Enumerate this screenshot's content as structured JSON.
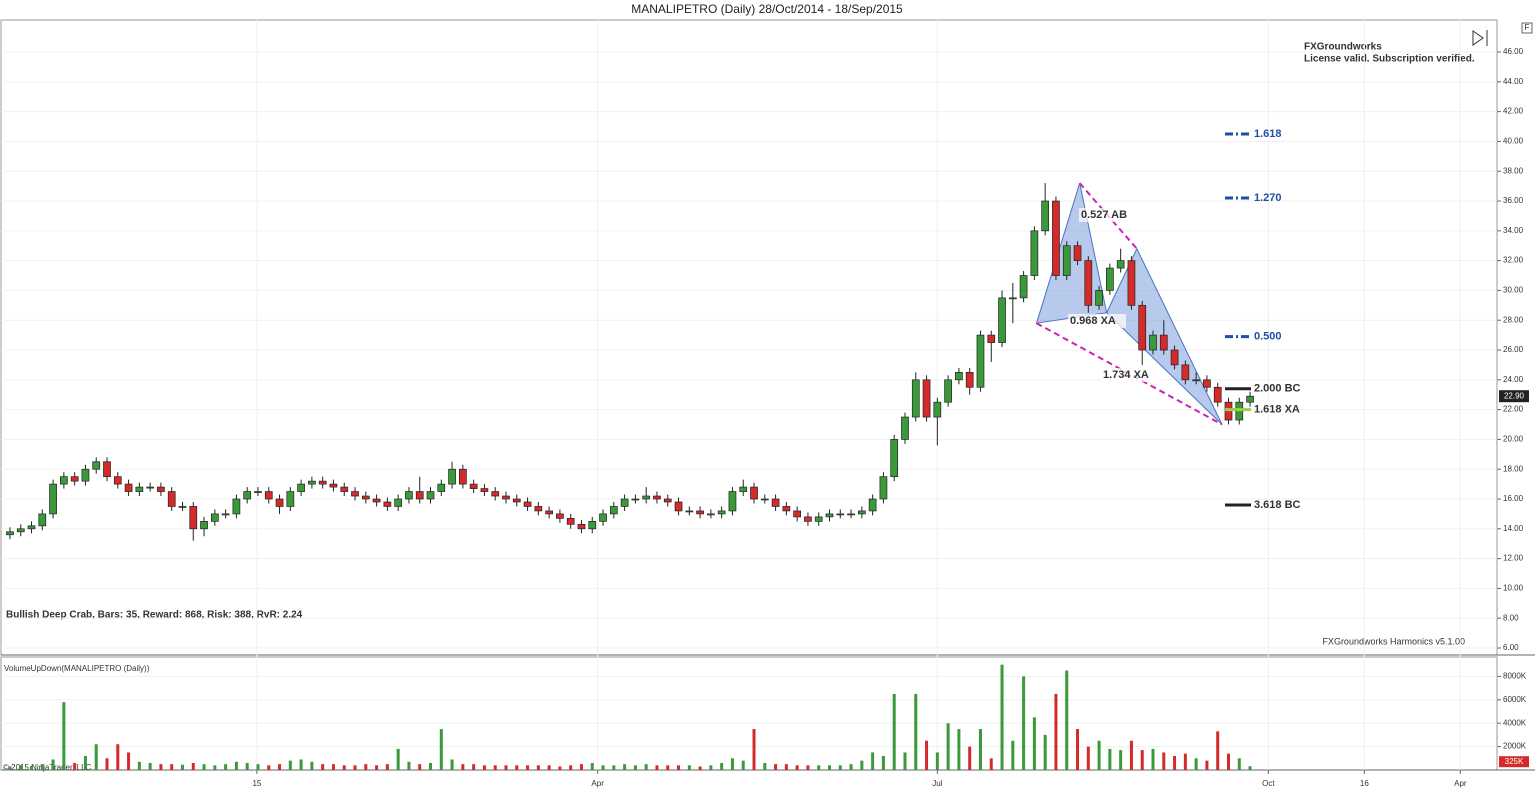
{
  "chart_data": {
    "type": "candlestick",
    "title": "MANALIPETRO (Daily)  28/Oct/2014 - 18/Sep/2015",
    "license_name": "FXGroundworks",
    "license_status": "License valid. Subscription verified.",
    "pattern_summary": "Bullish Deep Crab, Bars: 35, Reward: 868, Risk: 388, RvR: 2.24",
    "indicator_version": "FXGroundworks Harmonics v5.1.00",
    "volume_title": "VolumeUpDown(MANALIPETRO (Daily))",
    "copyright": "© 2015 NinjaTrader, LLC",
    "panel_button": "F",
    "up_color": "#3a9a3a",
    "down_color": "#d42a2a",
    "open": [
      13.6,
      13.8,
      14.0,
      14.2,
      15.0,
      17.0,
      17.5,
      17.2,
      18.0,
      18.5,
      17.5,
      17.0,
      16.5,
      16.8,
      16.8,
      16.5,
      15.5,
      15.5,
      14.0,
      14.5,
      15.0,
      15.0,
      16.0,
      16.5,
      16.5,
      16.0,
      15.5,
      16.5,
      17.0,
      17.2,
      17.0,
      16.8,
      16.5,
      16.2,
      16.0,
      15.8,
      15.5,
      16.0,
      16.5,
      16.0,
      16.5,
      17.0,
      18.0,
      17.0,
      16.7,
      16.5,
      16.2,
      16.0,
      15.8,
      15.5,
      15.2,
      15.0,
      14.7,
      14.3,
      14.0,
      14.5,
      15.0,
      15.5,
      16.0,
      16.0,
      16.2,
      16.0,
      15.8,
      15.2,
      15.2,
      15.0,
      15.0,
      15.2,
      16.5,
      16.8,
      16.0,
      16.0,
      15.5,
      15.2,
      14.8,
      14.5,
      14.8,
      15.0,
      15.0,
      15.0,
      15.2,
      16.0,
      17.5,
      20.0,
      21.5,
      24.0,
      21.5,
      22.5,
      24.0,
      24.5,
      23.5,
      27.0,
      26.5,
      29.5,
      29.5,
      31.0,
      34.0,
      36.0,
      31.0,
      33.0,
      32.0,
      29.0,
      30.0,
      31.5,
      32.0,
      29.0,
      26.0,
      27.0,
      26.0,
      25.0,
      24.0,
      24.0,
      23.5,
      22.5,
      21.3,
      22.5
    ],
    "high": [
      14.1,
      14.3,
      14.5,
      15.3,
      17.3,
      17.8,
      17.8,
      18.3,
      18.8,
      18.8,
      17.8,
      17.3,
      17.1,
      17.1,
      17.1,
      16.8,
      15.8,
      15.8,
      14.8,
      15.3,
      15.3,
      16.3,
      16.8,
      16.8,
      16.8,
      16.3,
      16.8,
      17.3,
      17.5,
      17.5,
      17.3,
      17.1,
      16.8,
      16.5,
      16.3,
      16.1,
      16.3,
      16.8,
      17.5,
      16.8,
      17.3,
      18.5,
      18.3,
      17.3,
      17.0,
      16.8,
      16.5,
      16.3,
      16.1,
      15.8,
      15.5,
      15.3,
      15.0,
      14.6,
      14.8,
      15.3,
      15.8,
      16.3,
      16.3,
      16.8,
      16.5,
      16.3,
      16.1,
      15.5,
      15.5,
      15.3,
      15.5,
      16.8,
      17.3,
      17.1,
      16.3,
      16.3,
      15.8,
      15.5,
      15.1,
      15.1,
      15.3,
      15.3,
      15.3,
      15.5,
      16.3,
      17.8,
      20.3,
      21.8,
      24.5,
      24.3,
      22.8,
      24.3,
      24.8,
      24.8,
      27.3,
      27.3,
      30.0,
      30.5,
      31.3,
      34.3,
      37.2,
      36.3,
      33.3,
      33.3,
      32.3,
      30.3,
      31.8,
      32.8,
      32.3,
      29.3,
      27.3,
      28.0,
      26.3,
      25.3,
      24.5,
      24.3,
      23.8,
      22.8,
      22.8,
      23.2
    ],
    "low": [
      13.3,
      13.5,
      13.7,
      13.9,
      14.7,
      16.7,
      16.9,
      16.9,
      17.7,
      17.2,
      16.7,
      16.2,
      16.2,
      16.5,
      16.2,
      15.2,
      15.2,
      13.2,
      13.5,
      14.2,
      14.7,
      14.7,
      15.7,
      16.2,
      15.7,
      15.0,
      15.2,
      16.2,
      16.7,
      16.7,
      16.5,
      16.2,
      15.9,
      15.7,
      15.5,
      15.2,
      15.2,
      15.7,
      15.7,
      15.7,
      16.2,
      16.7,
      16.7,
      16.4,
      16.2,
      15.9,
      15.7,
      15.5,
      15.2,
      14.9,
      14.7,
      14.4,
      14.0,
      13.7,
      13.7,
      14.2,
      14.7,
      15.2,
      15.7,
      15.7,
      15.7,
      15.5,
      14.9,
      14.9,
      14.7,
      14.7,
      14.7,
      14.9,
      16.2,
      15.7,
      15.7,
      15.2,
      14.9,
      14.5,
      14.2,
      14.2,
      14.5,
      14.7,
      14.7,
      14.7,
      14.9,
      15.7,
      17.2,
      19.7,
      21.2,
      21.2,
      19.6,
      22.2,
      23.7,
      23.0,
      23.2,
      25.2,
      26.2,
      27.8,
      29.2,
      30.7,
      33.7,
      30.7,
      30.7,
      31.7,
      28.5,
      28.7,
      29.7,
      31.2,
      28.7,
      25.0,
      25.7,
      25.7,
      24.7,
      23.7,
      23.7,
      23.2,
      22.2,
      21.0,
      21.0,
      22.2
    ],
    "close": [
      13.8,
      14.0,
      14.2,
      15.0,
      17.0,
      17.5,
      17.2,
      18.0,
      18.5,
      17.5,
      17.0,
      16.5,
      16.8,
      16.8,
      16.5,
      15.5,
      15.5,
      14.0,
      14.5,
      15.0,
      15.0,
      16.0,
      16.5,
      16.5,
      16.0,
      15.5,
      16.5,
      17.0,
      17.2,
      17.0,
      16.8,
      16.5,
      16.2,
      16.0,
      15.8,
      15.5,
      16.0,
      16.5,
      16.0,
      16.5,
      17.0,
      18.0,
      17.0,
      16.7,
      16.5,
      16.2,
      16.0,
      15.8,
      15.5,
      15.2,
      15.0,
      14.7,
      14.3,
      14.0,
      14.5,
      15.0,
      15.5,
      16.0,
      16.0,
      16.2,
      16.0,
      15.8,
      15.2,
      15.2,
      15.0,
      15.0,
      15.2,
      16.5,
      16.8,
      16.0,
      16.0,
      15.5,
      15.2,
      14.8,
      14.5,
      14.8,
      15.0,
      15.0,
      15.0,
      15.2,
      16.0,
      17.5,
      20.0,
      21.5,
      24.0,
      21.5,
      22.5,
      24.0,
      24.5,
      23.5,
      27.0,
      26.5,
      29.5,
      29.5,
      31.0,
      34.0,
      36.0,
      31.0,
      33.0,
      32.0,
      29.0,
      30.0,
      31.5,
      32.0,
      29.0,
      26.0,
      27.0,
      26.0,
      25.0,
      24.0,
      24.0,
      23.5,
      22.5,
      21.3,
      22.5,
      22.9
    ],
    "volume": [
      300,
      400,
      350,
      500,
      900,
      5800,
      600,
      1200,
      2200,
      1000,
      2200,
      1500,
      700,
      600,
      500,
      500,
      450,
      600,
      500,
      400,
      500,
      700,
      600,
      500,
      400,
      500,
      800,
      900,
      700,
      500,
      500,
      400,
      400,
      500,
      400,
      500,
      1800,
      700,
      500,
      600,
      3500,
      900,
      500,
      500,
      400,
      400,
      400,
      400,
      400,
      400,
      400,
      300,
      400,
      500,
      600,
      400,
      400,
      500,
      400,
      500,
      400,
      400,
      400,
      400,
      300,
      400,
      600,
      1000,
      800,
      3500,
      600,
      500,
      500,
      400,
      400,
      400,
      400,
      400,
      500,
      800,
      1500,
      1200,
      6500,
      1500,
      6500,
      2500,
      1500,
      4000,
      3500,
      2000,
      3500,
      1000,
      9000,
      2500,
      8000,
      4500,
      3000,
      6500,
      8500,
      3500,
      2000,
      2500,
      1800,
      1700,
      2500,
      1700,
      1800,
      1500,
      1200,
      1400,
      1000,
      800,
      3300,
      1400,
      1000,
      325
    ],
    "xlim": [
      -0.83,
      137.9
    ],
    "xticks": [
      {
        "value": 22.9,
        "label": "15"
      },
      {
        "value": 54.5,
        "label": "Apr"
      },
      {
        "value": 86.0,
        "label": "Jul"
      },
      {
        "value": 116.7,
        "label": "Oct"
      },
      {
        "value": 125.6,
        "label": "16"
      },
      {
        "value": 134.5,
        "label": "Apr"
      }
    ],
    "ylim": [
      5.53,
      48.15
    ],
    "yticks": [
      {
        "value": 6,
        "label": "6.00"
      },
      {
        "value": 8,
        "label": "8.00"
      },
      {
        "value": 10,
        "label": "10.00"
      },
      {
        "value": 12,
        "label": "12.00"
      },
      {
        "value": 14,
        "label": "14.00"
      },
      {
        "value": 16,
        "label": "16.00"
      },
      {
        "value": 18,
        "label": "18.00"
      },
      {
        "value": 20,
        "label": "20.00"
      },
      {
        "value": 22,
        "label": "22.00"
      },
      {
        "value": 24,
        "label": "24.00"
      },
      {
        "value": 26,
        "label": "26.00"
      },
      {
        "value": 28,
        "label": "28.00"
      },
      {
        "value": 30,
        "label": "30.00"
      },
      {
        "value": 32,
        "label": "32.00"
      },
      {
        "value": 34,
        "label": "34.00"
      },
      {
        "value": 36,
        "label": "36.00"
      },
      {
        "value": 38,
        "label": "38.00"
      },
      {
        "value": 40,
        "label": "40.00"
      },
      {
        "value": 42,
        "label": "42.00"
      },
      {
        "value": 44,
        "label": "44.00"
      },
      {
        "value": 46,
        "label": "46.00"
      }
    ],
    "y2lim": [
      0,
      9400
    ],
    "y2ticks": [
      {
        "value": 2000,
        "label": "2000K"
      },
      {
        "value": 4000,
        "label": "4000K"
      },
      {
        "value": 6000,
        "label": "6000K"
      },
      {
        "value": 8000,
        "label": "8000K"
      }
    ],
    "last_price": {
      "value": 22.9,
      "label": "22.90"
    },
    "last_volume": {
      "value": 325,
      "label": "325K"
    },
    "pattern": [
      {
        "x": 95.2,
        "y": 27.8
      },
      {
        "x": 99.2,
        "y": 37.2
      },
      {
        "x": 101.7,
        "y": 28.5
      },
      {
        "x": 104.5,
        "y": 32.8
      },
      {
        "x": 112.4,
        "y": 21.0
      }
    ],
    "ratios": [
      "0.527 AB",
      "0.968 XA",
      "1.734 XA"
    ],
    "levels": [
      {
        "label": "1.618",
        "value": 40.5,
        "color": "#1f4fa8"
      },
      {
        "label": "1.270",
        "value": 36.2,
        "color": "#1f4fa8"
      },
      {
        "label": "0.500",
        "value": 26.9,
        "color": "#1f4fa8"
      },
      {
        "label": "2.000 BC",
        "value": 23.4,
        "color": "#222222"
      },
      {
        "label": "1.618 XA",
        "value": 22.0,
        "color": "#9ad04a"
      },
      {
        "label": "3.618 BC",
        "value": 15.6,
        "color": "#222222"
      }
    ]
  }
}
